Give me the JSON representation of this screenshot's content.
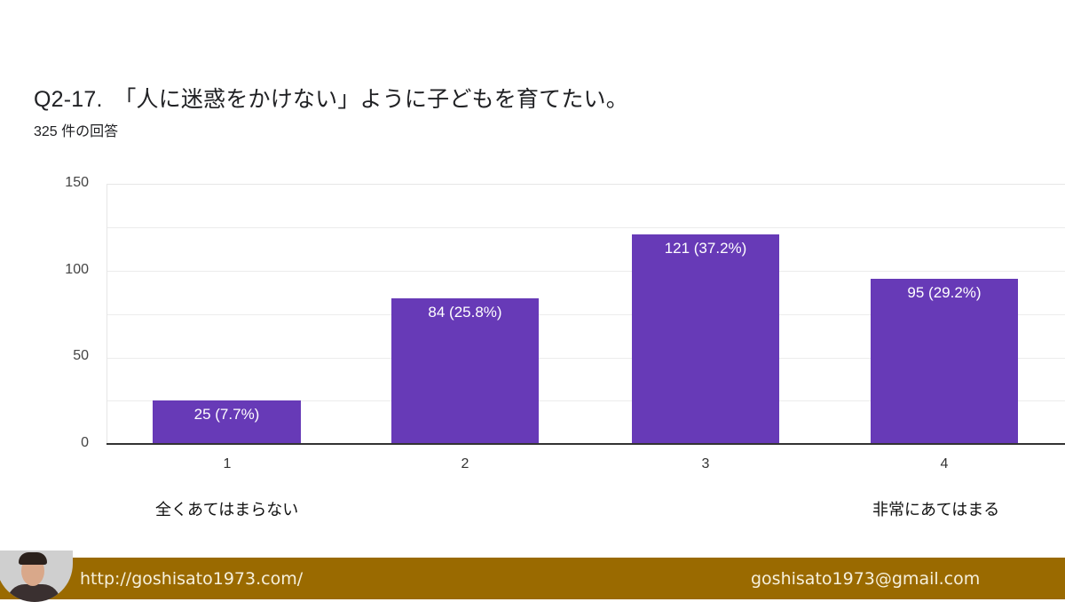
{
  "header": {
    "title": "Q2-17.　「人に迷惑をかけない」ように子どもを育てたい。",
    "subtitle": "325 件の回答"
  },
  "chart_data": {
    "type": "bar",
    "title": "Q2-17.　「人に迷惑をかけない」ように子どもを育てたい。",
    "subtitle": "325 件の回答",
    "categories": [
      "1",
      "2",
      "3",
      "4"
    ],
    "values": [
      25,
      84,
      121,
      95
    ],
    "percent_labels": [
      "25 (7.7%)",
      "84 (25.8%)",
      "121 (37.2%)",
      "95 (29.2%)"
    ],
    "yticks": [
      "0",
      "50",
      "100",
      "150"
    ],
    "ylim": [
      0,
      150
    ],
    "grid": true,
    "xlabel": "",
    "ylabel": "",
    "bar_color": "#673ab7",
    "scale_anchors": {
      "low": "全くあてはまらない",
      "high": "非常にあてはまる"
    },
    "legend": "none"
  },
  "footer": {
    "url": "http://goshisato1973.com/",
    "email": "goshisato1973@gmail.com",
    "color": "#9a6a00"
  }
}
